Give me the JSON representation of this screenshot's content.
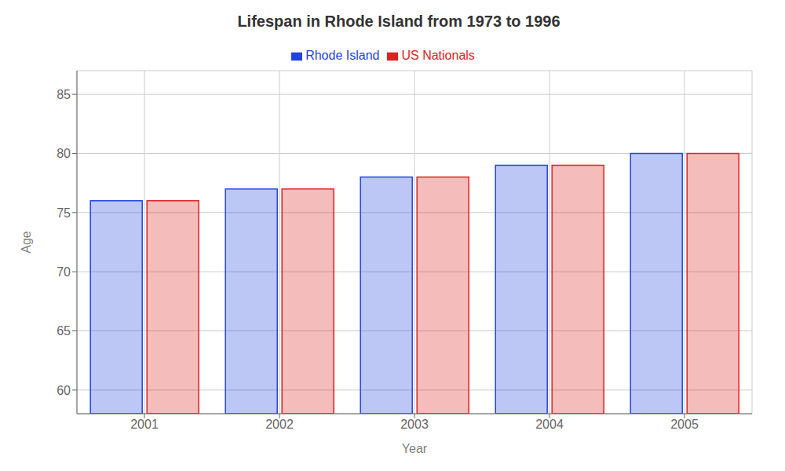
{
  "chart_data": {
    "type": "bar",
    "title": "Lifespan in Rhode Island from 1973 to 1996",
    "xlabel": "Year",
    "ylabel": "Age",
    "categories": [
      "2001",
      "2002",
      "2003",
      "2004",
      "2005"
    ],
    "series": [
      {
        "name": "Rhode Island",
        "color": "#2244dd",
        "values": [
          76.0,
          77.0,
          78.0,
          79.0,
          80.0
        ]
      },
      {
        "name": "US Nationals",
        "color": "#dd2222",
        "values": [
          76.0,
          77.0,
          78.0,
          79.0,
          80.0
        ]
      }
    ],
    "ylim": [
      58,
      87
    ],
    "yticks": [
      60,
      65,
      70,
      75,
      80,
      85
    ],
    "grid": true,
    "legend": "top"
  }
}
